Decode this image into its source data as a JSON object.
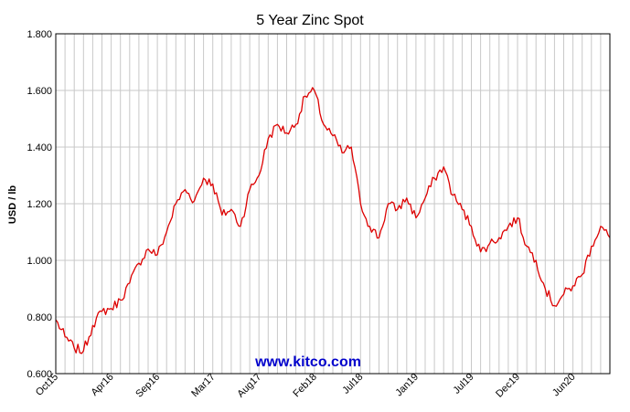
{
  "chart_data": {
    "type": "line",
    "title": "5 Year Zinc Spot",
    "xlabel": "",
    "ylabel": "USD / lb",
    "ylim": [
      0.6,
      1.8
    ],
    "y_ticks": [
      "0.600",
      "0.800",
      "1.000",
      "1.200",
      "1.400",
      "1.600",
      "1.800"
    ],
    "x_ticks": [
      "Oct15",
      "Apr16",
      "Sep16",
      "Mar17",
      "Aug17",
      "Feb18",
      "Jul18",
      "Jan19",
      "Jul19",
      "Dec19",
      "Jun20"
    ],
    "x_range": [
      "2015-10",
      "2020-10"
    ],
    "grid": true,
    "legend": "none",
    "watermark": "www.kitco.com",
    "colors": {
      "line": "#dd0000",
      "watermark": "#0000cc",
      "grid": "#c8c8c8"
    },
    "series": [
      {
        "x": [
          "2015-10",
          "2015-11",
          "2015-12",
          "2016-01",
          "2016-02",
          "2016-03",
          "2016-04",
          "2016-05",
          "2016-06",
          "2016-07",
          "2016-08",
          "2016-09",
          "2016-10",
          "2016-11",
          "2016-12",
          "2017-01",
          "2017-02",
          "2017-03",
          "2017-04",
          "2017-05",
          "2017-06",
          "2017-07",
          "2017-08",
          "2017-09",
          "2017-10",
          "2017-11",
          "2017-12",
          "2018-01",
          "2018-02",
          "2018-03",
          "2018-04",
          "2018-05",
          "2018-06",
          "2018-07",
          "2018-08",
          "2018-09",
          "2018-10",
          "2018-11",
          "2018-12",
          "2019-01",
          "2019-02",
          "2019-03",
          "2019-04",
          "2019-05",
          "2019-06",
          "2019-07",
          "2019-08",
          "2019-09",
          "2019-10",
          "2019-11",
          "2019-12",
          "2020-01",
          "2020-02",
          "2020-03",
          "2020-04",
          "2020-05",
          "2020-06",
          "2020-07",
          "2020-08",
          "2020-09",
          "2020-10"
        ],
        "values": [
          0.79,
          0.73,
          0.69,
          0.68,
          0.77,
          0.82,
          0.83,
          0.86,
          0.92,
          0.99,
          1.04,
          1.02,
          1.1,
          1.2,
          1.25,
          1.21,
          1.29,
          1.27,
          1.16,
          1.18,
          1.12,
          1.25,
          1.3,
          1.43,
          1.48,
          1.45,
          1.48,
          1.58,
          1.6,
          1.48,
          1.44,
          1.38,
          1.4,
          1.2,
          1.12,
          1.08,
          1.2,
          1.18,
          1.22,
          1.15,
          1.22,
          1.29,
          1.33,
          1.23,
          1.18,
          1.12,
          1.03,
          1.06,
          1.08,
          1.12,
          1.15,
          1.05,
          1.0,
          0.9,
          0.84,
          0.88,
          0.91,
          0.95,
          1.05,
          1.12,
          1.08
        ]
      }
    ]
  }
}
